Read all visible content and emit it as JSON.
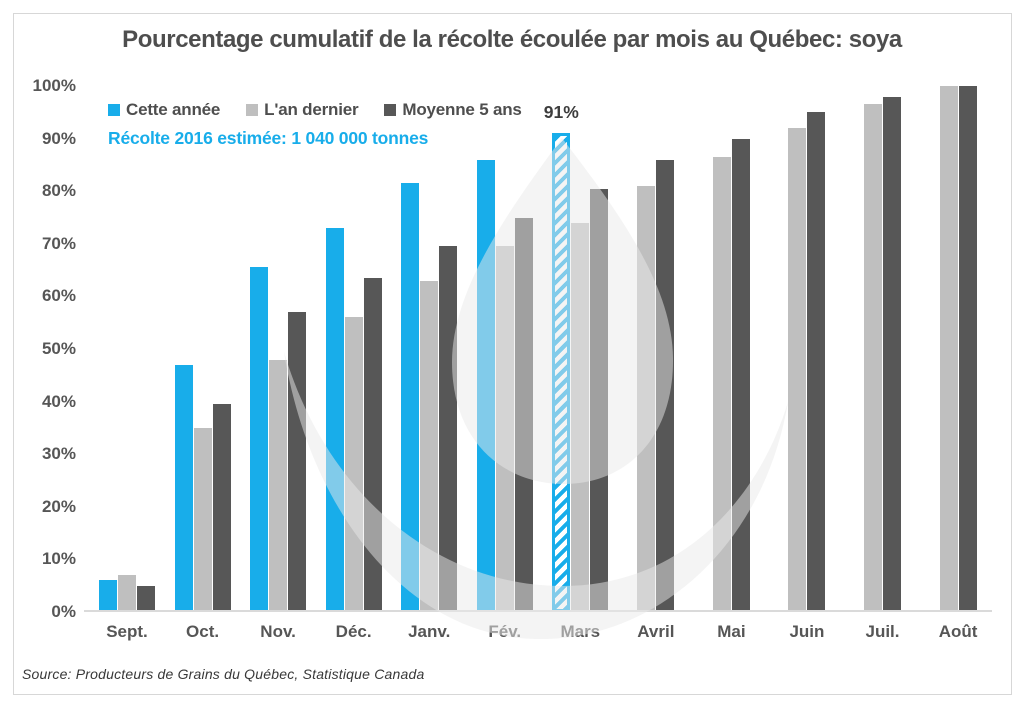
{
  "chart_data": {
    "type": "bar",
    "title": "Pourcentage cumulatif de la récolte écoulée par mois au Québec: soya",
    "subtitle": "Récolte 2016 estimée: 1 040 000 tonnes",
    "categories": [
      "Sept.",
      "Oct.",
      "Nov.",
      "Déc.",
      "Janv.",
      "Fév.",
      "Mars",
      "Avril",
      "Mai",
      "Juin",
      "Juil.",
      "Août"
    ],
    "series": [
      {
        "name": "Cette année",
        "color": "#18ADEA",
        "values": [
          6,
          47,
          65.5,
          73,
          81.5,
          86,
          91,
          null,
          null,
          null,
          null,
          null
        ]
      },
      {
        "name": "L'an dernier",
        "color": "#BFBFBF",
        "values": [
          7,
          35,
          48,
          56,
          63,
          69.5,
          74,
          81,
          86.5,
          92,
          96.5,
          100
        ]
      },
      {
        "name": "Moyenne 5 ans",
        "color": "#575757",
        "values": [
          5,
          39.5,
          57,
          63.5,
          69.5,
          75,
          80.5,
          86,
          90,
          95,
          98,
          100
        ]
      }
    ],
    "hatched_point": {
      "series": "Cette année",
      "category": "Mars"
    },
    "annotation": {
      "text": "91%",
      "category": "Mars",
      "series": "Cette année"
    },
    "yticks": [
      "0%",
      "10%",
      "20%",
      "30%",
      "40%",
      "50%",
      "60%",
      "70%",
      "80%",
      "90%",
      "100%"
    ],
    "ylim": [
      0,
      100
    ],
    "xlabel": "",
    "ylabel": "",
    "grid": false,
    "legend_position": "top-left"
  },
  "source": "Source: Producteurs de Grains du Québec, Statistique Canada",
  "colors": {
    "accent_blue": "#18ADEA",
    "light_gray": "#BFBFBF",
    "dark_gray": "#575757",
    "title_text": "#4E4E4E",
    "axis_text": "#565656",
    "frame_border": "#D7D7D7",
    "axis_line": "#DADADA",
    "watermark": "#E9E9E9"
  }
}
